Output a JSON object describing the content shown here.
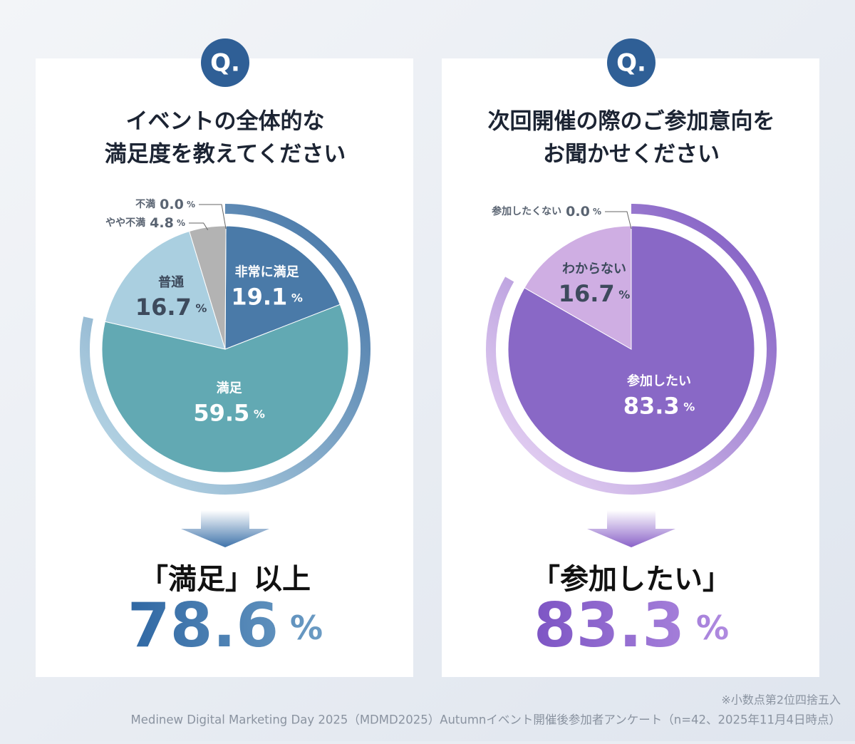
{
  "chart_data": [
    {
      "type": "pie",
      "badge": "Q.",
      "title": [
        "イベントの全体的な",
        "満足度を教えてください"
      ],
      "categories": [
        "非常に満足",
        "満足",
        "普通",
        "やや不満",
        "不満"
      ],
      "values": [
        19.1,
        59.5,
        16.7,
        4.8,
        0.0
      ],
      "value_labels": [
        "19.1%",
        "59.5%",
        "16.7%",
        "4.8%",
        "0.0%"
      ],
      "colors": [
        "#4a7aa8",
        "#62a9b3",
        "#aacfe0",
        "#b3b3b3",
        "#8a8a8a"
      ],
      "summary_label": "「満足」以上",
      "summary_value": "78.6%"
    },
    {
      "type": "pie",
      "badge": "Q.",
      "title": [
        "次回開催の際のご参加意向を",
        "お聞かせください"
      ],
      "categories": [
        "参加したい",
        "わからない",
        "参加したくない"
      ],
      "values": [
        83.3,
        16.7,
        0.0
      ],
      "value_labels": [
        "83.3%",
        "16.7%",
        "0.0%"
      ],
      "colors": [
        "#8968c6",
        "#cfaee3",
        "#a08bc8"
      ],
      "summary_label": "「参加したい」",
      "summary_value": "83.3%"
    }
  ],
  "notes": [
    "※小数点第2位四捨五入",
    "Medinew Digital Marketing Day 2025（MDMD2025）Autumnイベント開催後参加者アンケート（n=42、2025年11月4日時点）"
  ]
}
